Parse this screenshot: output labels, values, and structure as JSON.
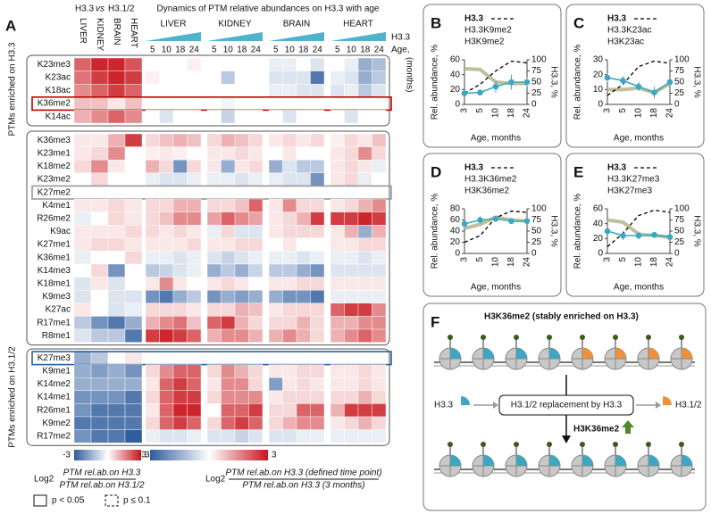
{
  "panel_a": {
    "letter": "A",
    "rel_header": [
      "H3.3",
      "vs",
      "H3.1/2"
    ],
    "dynamics_header": "Dynamics of PTM relative abundances on H3.3 with age",
    "rel_columns": [
      "LIVER",
      "KIDNEY",
      "BRAIN",
      "HEART"
    ],
    "tissues": [
      "LIVER",
      "KIDNEY",
      "BRAIN",
      "HEART"
    ],
    "time_points": [
      5,
      10,
      18,
      24
    ],
    "gradient_label": "H3.3",
    "age_label": "Age,",
    "age_unit": "(months)",
    "group_labels": [
      "PTMs enriched on H3.3",
      "PTMs enriched on H3.1/2"
    ],
    "colors": {
      "negative": "#2f5d9e",
      "positive": "#c8161d"
    },
    "groups": [
      {
        "rows": [
          {
            "label": "K23me3",
            "values": [
              2,
              2.8,
              2.8,
              2.2,
              0,
              0,
              0,
              0.2,
              0,
              0,
              0,
              0,
              -0.3,
              -0.3,
              0,
              -0.5,
              0,
              -0.3,
              -1.5,
              -1.2
            ]
          },
          {
            "label": "K23ac",
            "values": [
              1.8,
              2.5,
              2.8,
              2.5,
              0.2,
              0,
              0,
              0,
              0,
              -1,
              0,
              0,
              -0.5,
              -0.5,
              -0.5,
              -2.5,
              -0.3,
              -0.5,
              -1.5,
              -1
            ]
          },
          {
            "label": "K18ac",
            "values": [
              1.5,
              2,
              2.5,
              2,
              0,
              0,
              0,
              0,
              0,
              0,
              0,
              0,
              -0.3,
              -0.3,
              -0.5,
              -0.5,
              -0.5,
              -0.3,
              -1,
              -0.5
            ]
          },
          {
            "label": "K36me2",
            "highlight": "#c00000",
            "values": [
              0.8,
              0.8,
              0.3,
              0.8,
              0,
              0,
              0,
              0,
              0,
              -0.2,
              0,
              0,
              0,
              0,
              0,
              0,
              0,
              0,
              0,
              0
            ]
          },
          {
            "label": "K14ac",
            "values": [
              1,
              1.5,
              2,
              1.5,
              0,
              -0.5,
              0,
              0,
              0,
              -0.8,
              0,
              0,
              0,
              -0.5,
              0,
              0,
              0,
              -0.5,
              0,
              0
            ]
          }
        ]
      },
      {
        "rows": [
          {
            "label": "K36me3",
            "values": [
              0.3,
              0.3,
              1,
              2.5,
              0.5,
              0.8,
              1,
              0.8,
              0.5,
              1,
              0.8,
              0.5,
              0.3,
              0.5,
              0.3,
              0.5,
              0.2,
              0.5,
              0.3,
              0.8
            ]
          },
          {
            "label": "K23me1",
            "values": [
              0.3,
              0.5,
              1.5,
              0,
              0.2,
              0.3,
              0.2,
              0,
              0.3,
              0.3,
              0.5,
              0.3,
              0,
              0.3,
              0,
              0,
              0.3,
              0.5,
              1.5,
              0.5
            ]
          },
          {
            "label": "K18me2",
            "values": [
              0.5,
              1.5,
              0.3,
              0,
              1,
              0.5,
              -2,
              0.5,
              0.3,
              -1.5,
              0.3,
              0.5,
              -1.5,
              -0.5,
              -1,
              -1,
              0.3,
              0.5,
              0.3,
              -0.3
            ]
          },
          {
            "label": "K23me2",
            "values": [
              0,
              0.5,
              0,
              0,
              -0.3,
              -0.5,
              -0.5,
              -0.3,
              -0.3,
              -0.3,
              -0.5,
              -0.3,
              -0.3,
              -0.5,
              -0.5,
              -2,
              0.3,
              0.5,
              -0.3,
              0
            ]
          },
          {
            "label": "K27me2",
            "highlight": "#999999",
            "values": [
              0,
              0,
              0,
              0,
              0,
              0,
              0,
              0,
              0,
              0,
              0,
              0,
              0,
              0,
              0,
              0,
              0,
              0,
              0,
              0
            ]
          },
          {
            "label": "K4me1",
            "values": [
              0.3,
              0.3,
              0.5,
              0.3,
              0.5,
              0.5,
              1,
              1,
              0.5,
              0.5,
              0.8,
              2,
              0.3,
              1.5,
              0.5,
              0.5,
              0.3,
              0.5,
              1,
              1.5
            ]
          },
          {
            "label": "R26me2",
            "values": [
              -0.3,
              0,
              0.5,
              0.3,
              0.5,
              0.8,
              1.5,
              1.5,
              1.2,
              2,
              1.5,
              1.2,
              0.3,
              0.5,
              1,
              2.5,
              2.5,
              2.5,
              2.8,
              2.5
            ]
          },
          {
            "label": "K9ac",
            "values": [
              0.3,
              0.3,
              0.3,
              0.5,
              0.5,
              0.3,
              0.5,
              0.3,
              -0.3,
              0.5,
              -0.5,
              -0.5,
              0.3,
              0.5,
              0.5,
              0.5,
              0.3,
              1,
              -1.5,
              1
            ]
          },
          {
            "label": "K27me1",
            "values": [
              0.3,
              0.5,
              0.5,
              0.3,
              0.3,
              0.3,
              0.3,
              0.5,
              0.3,
              0.3,
              0.5,
              0.5,
              0,
              0.3,
              0,
              0,
              0.3,
              0.3,
              0.5,
              0.5
            ]
          },
          {
            "label": "K36me1",
            "values": [
              -0.3,
              0,
              0,
              0.5,
              -0.3,
              -0.3,
              -0.5,
              -0.3,
              -0.5,
              -0.8,
              -0.5,
              -0.3,
              -0.3,
              -0.3,
              -0.5,
              -0.3,
              -0.3,
              -0.3,
              -0.5,
              -0.3
            ]
          },
          {
            "label": "K14me3",
            "values": [
              0,
              0.5,
              -2,
              0,
              -1,
              -0.8,
              -0.5,
              -0.3,
              -1.5,
              -1,
              -1.5,
              -0.8,
              -1,
              -1,
              -1.5,
              -2,
              -0.5,
              -0.5,
              -0.5,
              -0.5
            ]
          },
          {
            "label": "K18me1",
            "values": [
              -0.5,
              0.3,
              -0.5,
              0,
              0.3,
              1.5,
              0.3,
              0,
              0.3,
              0.5,
              0.3,
              0,
              0.3,
              0.3,
              0.5,
              0.5,
              0.3,
              0.3,
              0.3,
              0.3
            ]
          },
          {
            "label": "K9me3",
            "values": [
              -0.5,
              0,
              -0.5,
              -0.5,
              -2,
              -2.5,
              -1.5,
              -1,
              -2,
              -1.5,
              -1.8,
              -1.5,
              -1.5,
              -2,
              -2,
              -2.5,
              -0.3,
              -0.3,
              -0.3,
              -0.3
            ]
          },
          {
            "label": "K27ac",
            "values": [
              0.3,
              0,
              -0.5,
              -0.3,
              0.5,
              0.5,
              0.5,
              0.3,
              0.5,
              0.5,
              1,
              0.8,
              0.3,
              0.5,
              0.5,
              0.5,
              2,
              2.5,
              2.5,
              1.5
            ]
          },
          {
            "label": "R17me1",
            "values": [
              -1,
              -2,
              -2.5,
              -1.5,
              1,
              1.5,
              1.8,
              0.8,
              2,
              2.5,
              1,
              0.5,
              0.5,
              0.5,
              1,
              0.5,
              1,
              1,
              1.5,
              1.5
            ]
          },
          {
            "label": "R8me1",
            "values": [
              -0.5,
              -1,
              -1,
              -2.5,
              2.5,
              2.8,
              2.5,
              2,
              1,
              1.5,
              1.5,
              1,
              1,
              1.5,
              1,
              0.5,
              1,
              1.5,
              2,
              1.5
            ]
          }
        ]
      },
      {
        "rows": [
          {
            "label": "K27me3",
            "highlight": "#2f5d9e",
            "values": [
              -1.5,
              -1,
              0,
              0.3,
              0,
              0,
              0,
              0,
              0,
              0,
              0,
              0,
              0,
              0,
              0,
              0,
              0,
              0,
              0,
              0
            ]
          },
          {
            "label": "K9me1",
            "values": [
              -1.5,
              -1.8,
              -1.5,
              -2,
              0.5,
              1.5,
              2,
              2,
              0.5,
              1.5,
              1,
              0.5,
              0.3,
              0.3,
              0.5,
              0.5,
              0.3,
              0.3,
              0.5,
              0.3
            ]
          },
          {
            "label": "K14me2",
            "values": [
              -1.5,
              -1.5,
              -1.5,
              -1.5,
              0.3,
              2,
              2.5,
              2,
              0.3,
              1.5,
              1.5,
              0.5,
              -1.8,
              0.3,
              0.5,
              0.3,
              0.3,
              0.3,
              0.5,
              0.3
            ]
          },
          {
            "label": "K14me1",
            "values": [
              -2,
              -2,
              -2,
              -2.5,
              0.5,
              2,
              2.5,
              2.5,
              0.5,
              1.5,
              1.5,
              1.5,
              0.3,
              0.5,
              0.5,
              0.5,
              0.5,
              0.5,
              1,
              0.5
            ]
          },
          {
            "label": "R26me1",
            "values": [
              -2,
              -2.5,
              -2.5,
              -2.5,
              0.3,
              2,
              2.8,
              2.8,
              0,
              2,
              2,
              2.5,
              0.5,
              0.5,
              2,
              2,
              1,
              2.5,
              2.5,
              2.5
            ]
          },
          {
            "label": "K9me2",
            "values": [
              -2.5,
              -2.5,
              -2.5,
              -2.5,
              0.5,
              2,
              2.5,
              2,
              0.5,
              2,
              2.5,
              2,
              0.5,
              1,
              1.5,
              1.5,
              0.3,
              0.5,
              1,
              0.5
            ]
          },
          {
            "label": "R17me2",
            "values": [
              -2,
              -2.5,
              -2.5,
              -3,
              -0.3,
              -0.5,
              -0.5,
              -0.3,
              -0.5,
              -0.5,
              -0.8,
              -0.5,
              -0.5,
              -0.5,
              -0.3,
              -0.3,
              -0.3,
              -0.3,
              -0.3,
              -0.3
            ]
          }
        ]
      }
    ],
    "colorbars": [
      {
        "range": [
          -3,
          3
        ]
      },
      {
        "range": [
          -3,
          3
        ]
      }
    ],
    "formula_rel": {
      "log": "Log2",
      "numerator": "PTM rel.ab.on H3.3",
      "denominator": "PTM rel.ab.on H3.1/2"
    },
    "formula_dyn": {
      "log": "Log2",
      "numerator": "PTM rel.ab.on H3.3 (defined time point)",
      "denominator": "PTM rel.ab.on H3.3 (3 months)"
    },
    "significance_legend": [
      "p < 0.05",
      "p ≤ 0.1"
    ]
  },
  "line_panels": [
    {
      "letter": "B",
      "type": "line",
      "categories": [
        3,
        5,
        10,
        18,
        24
      ],
      "x_label": "Age, months",
      "y_label": "Rel. abundance, %",
      "y2_label": "H3.3, %",
      "ylim": [
        0,
        60
      ],
      "yticks": [
        0,
        20,
        40,
        60
      ],
      "y2lim": [
        0,
        100
      ],
      "y2ticks": [
        0,
        25,
        50,
        75,
        100
      ],
      "series": [
        {
          "name": "H3.3",
          "color": "#000000",
          "dashed": true,
          "axis": "y2",
          "values": [
            25,
            45,
            75,
            97,
            93
          ]
        },
        {
          "name": "H3.3K9me2",
          "color": "#3ba7c2",
          "values": [
            15,
            16,
            24,
            30,
            30
          ],
          "errors": [
            4,
            4,
            8,
            10,
            6
          ]
        },
        {
          "name": "H3K9me2",
          "color": "#b5b48a",
          "values": [
            48,
            47,
            30,
            28,
            28
          ]
        }
      ]
    },
    {
      "letter": "C",
      "type": "line",
      "categories": [
        3,
        5,
        10,
        18,
        24
      ],
      "x_label": "Age, months",
      "y_label": "Rel. abundance, %",
      "y2_label": "H3.3, %",
      "ylim": [
        0,
        30
      ],
      "yticks": [
        0,
        10,
        20,
        30
      ],
      "y2lim": [
        0,
        100
      ],
      "y2ticks": [
        0,
        25,
        50,
        75,
        100
      ],
      "series": [
        {
          "name": "H3.3",
          "color": "#000000",
          "dashed": true,
          "axis": "y2",
          "values": [
            20,
            45,
            85,
            97,
            92
          ]
        },
        {
          "name": "H3.3K23ac",
          "color": "#3ba7c2",
          "values": [
            18,
            16,
            12,
            8,
            15
          ],
          "errors": [
            3,
            3,
            3,
            4,
            2
          ]
        },
        {
          "name": "H3K23ac",
          "color": "#b5b48a",
          "values": [
            10,
            10,
            11,
            8,
            14
          ]
        }
      ]
    },
    {
      "letter": "D",
      "type": "line",
      "categories": [
        3,
        5,
        10,
        18,
        24
      ],
      "x_label": "Age, months",
      "y_label": "Rel. abundance, %",
      "y2_label": "H3.3, %",
      "ylim": [
        0,
        80
      ],
      "yticks": [
        0,
        20,
        40,
        60,
        80
      ],
      "y2lim": [
        0,
        100
      ],
      "y2ticks": [
        0,
        25,
        50,
        75,
        100
      ],
      "series": [
        {
          "name": "H3.3",
          "color": "#000000",
          "dashed": true,
          "axis": "y2",
          "values": [
            25,
            40,
            80,
            95,
            92
          ]
        },
        {
          "name": "H3.3K36me2",
          "color": "#3ba7c2",
          "values": [
            53,
            60,
            62,
            58,
            58
          ],
          "errors": [
            5,
            6,
            5,
            3,
            3
          ]
        },
        {
          "name": "H3K36me2",
          "color": "#b5b48a",
          "values": [
            45,
            52,
            65,
            60,
            58
          ]
        }
      ]
    },
    {
      "letter": "E",
      "type": "line",
      "categories": [
        3,
        5,
        10,
        18,
        24
      ],
      "x_label": "Age, months",
      "y_label": "Rel. abundance, %",
      "y2_label": "H3.3, %",
      "ylim": [
        0,
        60
      ],
      "yticks": [
        0,
        20,
        40,
        60
      ],
      "y2lim": [
        0,
        100
      ],
      "y2ticks": [
        0,
        25,
        50,
        75,
        100
      ],
      "series": [
        {
          "name": "H3.3",
          "color": "#000000",
          "dashed": true,
          "axis": "y2",
          "values": [
            15,
            45,
            85,
            97,
            92
          ]
        },
        {
          "name": "H3.3K27me3",
          "color": "#3ba7c2",
          "values": [
            30,
            24,
            24,
            25,
            22
          ],
          "errors": [
            3,
            6,
            5,
            4,
            3
          ]
        },
        {
          "name": "H3K27me3",
          "color": "#b5b48a",
          "values": [
            45,
            42,
            26,
            24,
            22
          ]
        }
      ]
    }
  ],
  "panel_f": {
    "letter": "F",
    "title": "H3K36me2 (stably enriched on H3.3)",
    "incoming": "H3.3",
    "process": "H3.1/2 replacement by H3.3",
    "outgoing": "H3.1/2",
    "result": "H3K36me2"
  }
}
